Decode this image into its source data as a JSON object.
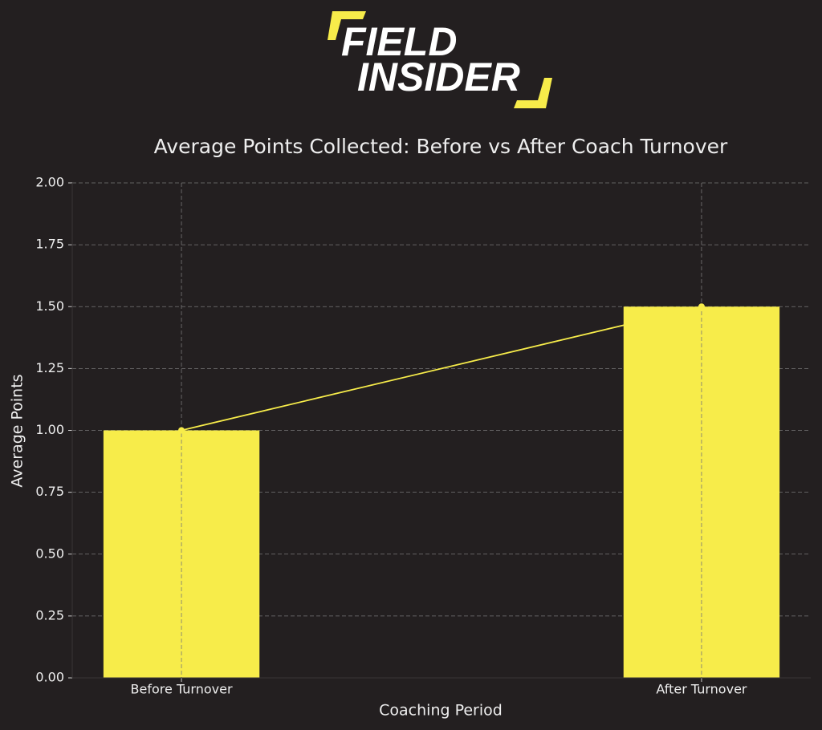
{
  "logo": {
    "line1": "FIELD",
    "line2": "INSIDER"
  },
  "chart_data": {
    "type": "bar",
    "title": "Average Points Collected: Before vs After Coach Turnover",
    "x_label": "Coaching Period",
    "y_label": "Average Points",
    "categories": [
      "Before Turnover",
      "After Turnover"
    ],
    "series": [
      {
        "type": "bar",
        "color": "#f7ec4a",
        "values": [
          1.0,
          1.5
        ]
      },
      {
        "type": "line",
        "color": "#f7ec4a",
        "values": [
          1.0,
          1.5
        ]
      }
    ],
    "ylim": [
      0,
      2
    ],
    "yticks": [
      {
        "value": 0,
        "label": "0.00"
      },
      {
        "value": 0.25,
        "label": "0.25"
      },
      {
        "value": 0.5,
        "label": "0.50"
      },
      {
        "value": 0.75,
        "label": "0.75"
      },
      {
        "value": 1,
        "label": "1.00"
      },
      {
        "value": 1.25,
        "label": "1.25"
      },
      {
        "value": 1.5,
        "label": "1.50"
      },
      {
        "value": 1.75,
        "label": "1.75"
      },
      {
        "value": 2,
        "label": "2.00"
      }
    ],
    "grid": true
  }
}
